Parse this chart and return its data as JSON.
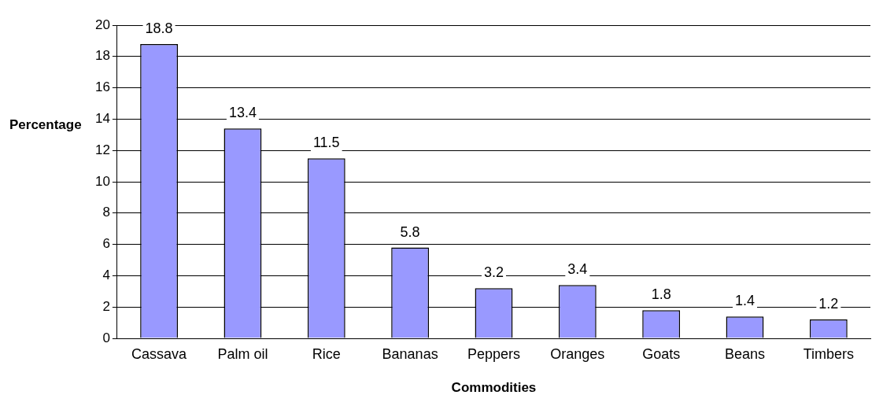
{
  "chart_data": {
    "type": "bar",
    "xlabel": "Commodities",
    "ylabel": "Percentage",
    "categories": [
      "Cassava",
      "Palm oil",
      "Rice",
      "Bananas",
      "Peppers",
      "Oranges",
      "Goats",
      "Beans",
      "Timbers"
    ],
    "values": [
      18.8,
      13.4,
      11.5,
      5.8,
      3.2,
      3.4,
      1.8,
      1.4,
      1.2
    ],
    "color": "#9999ff",
    "ylim": [
      0,
      20
    ],
    "yticks": [
      0,
      2,
      4,
      6,
      8,
      10,
      12,
      14,
      16,
      18,
      20
    ],
    "grid": "y",
    "legend": false,
    "data_labels": true
  }
}
